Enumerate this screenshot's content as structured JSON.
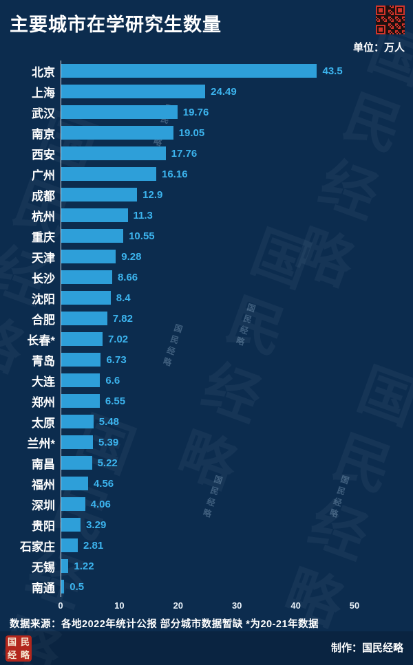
{
  "header": {
    "title": "主要城市在学研究生数量",
    "unit": "单位：万人"
  },
  "chart_data": {
    "type": "bar",
    "orientation": "horizontal",
    "title": "主要城市在学研究生数量",
    "unit": "万人",
    "categories": [
      "北京",
      "上海",
      "武汉",
      "南京",
      "西安",
      "广州",
      "成都",
      "杭州",
      "重庆",
      "天津",
      "长沙",
      "沈阳",
      "合肥",
      "长春*",
      "青岛",
      "大连",
      "郑州",
      "太原",
      "兰州*",
      "南昌",
      "福州",
      "深圳",
      "贵阳",
      "石家庄",
      "无锡",
      "南通"
    ],
    "values": [
      43.5,
      24.49,
      19.76,
      19.05,
      17.76,
      16.16,
      12.9,
      11.3,
      10.55,
      9.28,
      8.66,
      8.4,
      7.82,
      7.02,
      6.73,
      6.6,
      6.55,
      5.48,
      5.39,
      5.22,
      4.56,
      4.06,
      3.29,
      2.81,
      1.22,
      0.5
    ],
    "xlim": [
      0,
      50
    ],
    "x_ticks": [
      0,
      10,
      20,
      30,
      40,
      50
    ],
    "grid": false,
    "legend": false,
    "bar_color": "#2e9fd9",
    "value_label_color": "#3cb4ee",
    "background_color": "#0c2c4e"
  },
  "footer": {
    "source": "数据来源：各地2022年统计公报 部分城市数据暂缺 *为20-21年数据",
    "credit": "制作：国民经略"
  },
  "watermark_text": "国民经略",
  "seal_text": "国民经略",
  "qr": {
    "name": "qr-code",
    "color": "#d2342a"
  }
}
